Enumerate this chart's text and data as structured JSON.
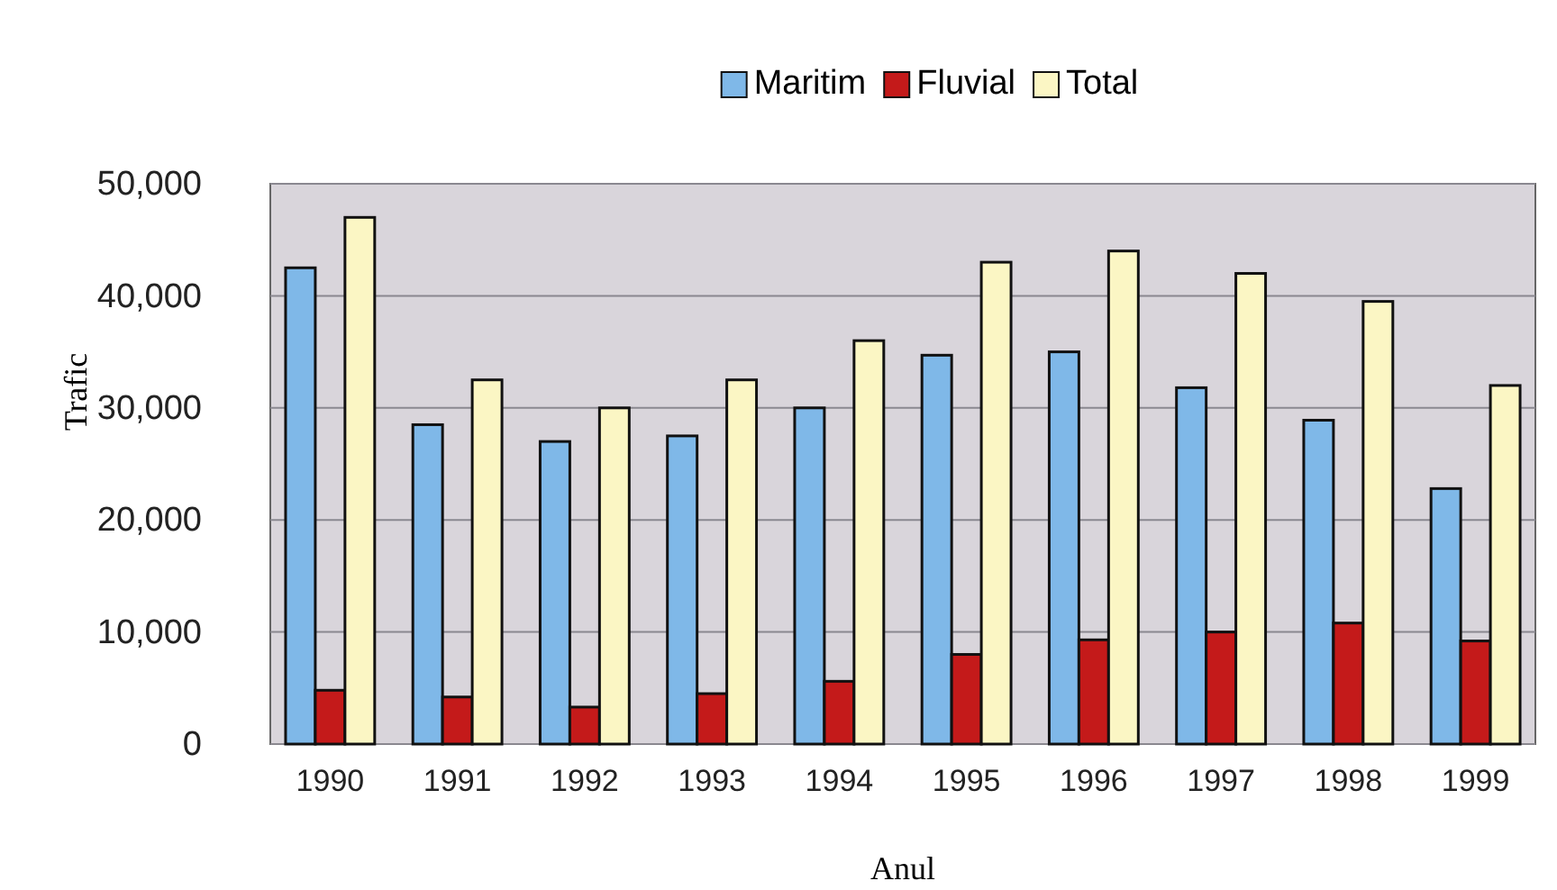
{
  "chart_data": {
    "type": "bar",
    "xlabel": "Anul",
    "ylabel": "Trafic",
    "categories": [
      "1990",
      "1991",
      "1992",
      "1993",
      "1994",
      "1995",
      "1996",
      "1997",
      "1998",
      "1999"
    ],
    "series": [
      {
        "name": "Maritim",
        "color": "#7fb8e8",
        "values": [
          42500,
          28500,
          27000,
          27500,
          30000,
          34700,
          35000,
          31800,
          28900,
          22800
        ]
      },
      {
        "name": "Fluvial",
        "color": "#c41a1a",
        "values": [
          4800,
          4200,
          3300,
          4500,
          5600,
          8000,
          9300,
          10000,
          10800,
          9200
        ]
      },
      {
        "name": "Total",
        "color": "#fbf6c4",
        "values": [
          47000,
          32500,
          30000,
          32500,
          36000,
          43000,
          44000,
          42000,
          39500,
          32000
        ]
      }
    ],
    "ylim": [
      0,
      50000
    ],
    "yticks": [
      {
        "value": 0,
        "label": "0"
      },
      {
        "value": 10000,
        "label": "10,000"
      },
      {
        "value": 20000,
        "label": "20,000"
      },
      {
        "value": 30000,
        "label": "30,000"
      },
      {
        "value": 40000,
        "label": "40,000"
      },
      {
        "value": 50000,
        "label": "50,000"
      }
    ],
    "grid": "y",
    "legend": "top"
  }
}
